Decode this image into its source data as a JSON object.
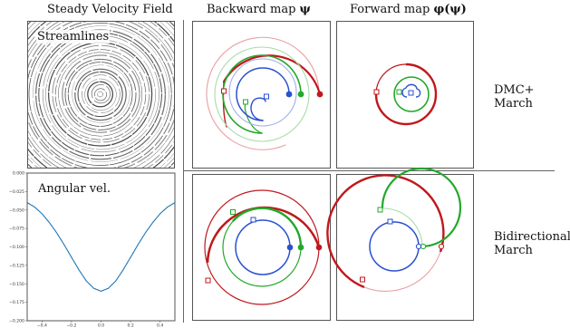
{
  "headers": {
    "col1": "Steady Velocity Field",
    "col2_text": "Backward map ",
    "col2_symbol": "ψ",
    "col3_text": "Forward map ",
    "col3_symbol": "φ(ψ)"
  },
  "panels": {
    "streamlines_label": "Streamlines",
    "angular_label": "Angular vel."
  },
  "row_labels": {
    "row1_line1": "DMC+",
    "row1_line2": "March",
    "row2_line1": "Bidirectional",
    "row2_line2": "March"
  },
  "colors": {
    "red": "#c0181c",
    "green": "#22a82a",
    "blue": "#2a50d0",
    "light_red": "#e8a0a2",
    "light_green": "#a8dca8",
    "light_blue": "#9eb0ea",
    "curve": "#1f77b4"
  },
  "chart_data": {
    "type": "line",
    "title": "Angular vel.",
    "xlabel": "",
    "ylabel": "",
    "xlim": [
      -0.5,
      0.5
    ],
    "ylim": [
      -0.2,
      0.0
    ],
    "x_ticks": [
      "−0.4",
      "−0.2",
      "0.0",
      "0.2",
      "0.4"
    ],
    "y_ticks": [
      "0.000",
      "−0.025",
      "−0.050",
      "−0.075",
      "−0.100",
      "−0.125",
      "−0.150",
      "−0.175",
      "−0.200"
    ],
    "x_tick_values": [
      -0.4,
      -0.2,
      0.0,
      0.2,
      0.4
    ],
    "y_tick_values": [
      0.0,
      -0.025,
      -0.05,
      -0.075,
      -0.1,
      -0.125,
      -0.15,
      -0.175,
      -0.2
    ],
    "series": [
      {
        "x": [
          -0.5,
          -0.45,
          -0.4,
          -0.35,
          -0.3,
          -0.25,
          -0.2,
          -0.15,
          -0.1,
          -0.05,
          0.0,
          0.05,
          0.1,
          0.15,
          0.2,
          0.25,
          0.3,
          0.35,
          0.4,
          0.45,
          0.5
        ],
        "y": [
          -0.04,
          -0.046,
          -0.055,
          -0.067,
          -0.081,
          -0.097,
          -0.114,
          -0.131,
          -0.146,
          -0.156,
          -0.16,
          -0.156,
          -0.146,
          -0.131,
          -0.114,
          -0.097,
          -0.081,
          -0.067,
          -0.055,
          -0.046,
          -0.04
        ]
      }
    ]
  }
}
